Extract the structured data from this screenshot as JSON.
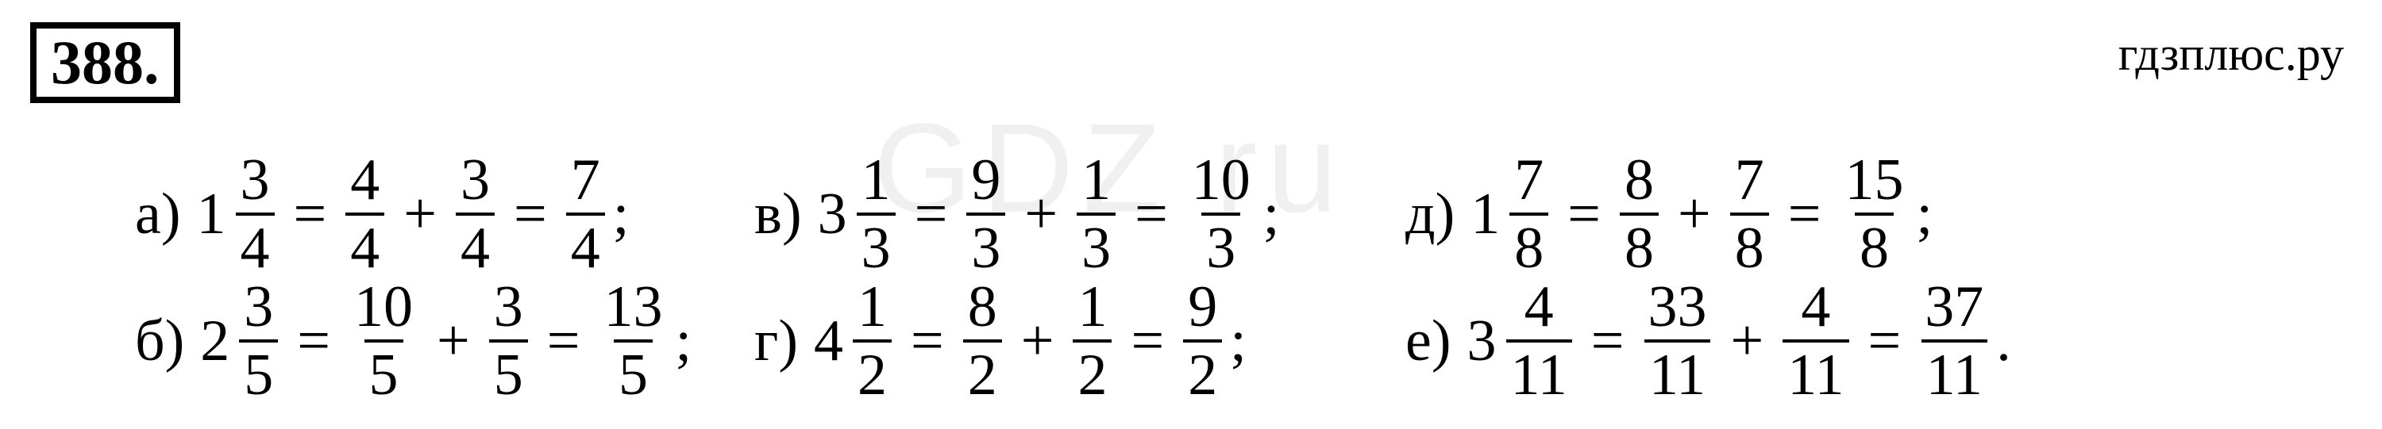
{
  "problem_number": "388.",
  "site_watermark": "гдзплюс.ру",
  "center_watermark": "GDZ ru",
  "plus_sign": "+",
  "equals_sign": "=",
  "equations": {
    "a": {
      "label": "а)",
      "mixed_int": "1",
      "mixed_num": "3",
      "mixed_den": "4",
      "t1_num": "4",
      "t1_den": "4",
      "t2_num": "3",
      "t2_den": "4",
      "res_num": "7",
      "res_den": "4",
      "end": ";"
    },
    "b": {
      "label": "б)",
      "mixed_int": "2",
      "mixed_num": "3",
      "mixed_den": "5",
      "t1_num": "10",
      "t1_den": "5",
      "t2_num": "3",
      "t2_den": "5",
      "res_num": "13",
      "res_den": "5",
      "end": ";"
    },
    "v": {
      "label": "в)",
      "mixed_int": "3",
      "mixed_num": "1",
      "mixed_den": "3",
      "t1_num": "9",
      "t1_den": "3",
      "t2_num": "1",
      "t2_den": "3",
      "res_num": "10",
      "res_den": "3",
      "end": ";"
    },
    "g": {
      "label": "г)",
      "mixed_int": "4",
      "mixed_num": "1",
      "mixed_den": "2",
      "t1_num": "8",
      "t1_den": "2",
      "t2_num": "1",
      "t2_den": "2",
      "res_num": "9",
      "res_den": "2",
      "end": ";"
    },
    "d": {
      "label": "д)",
      "mixed_int": "1",
      "mixed_num": "7",
      "mixed_den": "8",
      "t1_num": "8",
      "t1_den": "8",
      "t2_num": "7",
      "t2_den": "8",
      "res_num": "15",
      "res_den": "8",
      "end": ";"
    },
    "e": {
      "label": "е)",
      "mixed_int": "3",
      "mixed_num": "4",
      "mixed_den": "11",
      "t1_num": "33",
      "t1_den": "11",
      "t2_num": "4",
      "t2_den": "11",
      "res_num": "37",
      "res_den": "11",
      "end": "."
    }
  },
  "order": [
    "a",
    "v",
    "d",
    "b",
    "g",
    "e"
  ]
}
